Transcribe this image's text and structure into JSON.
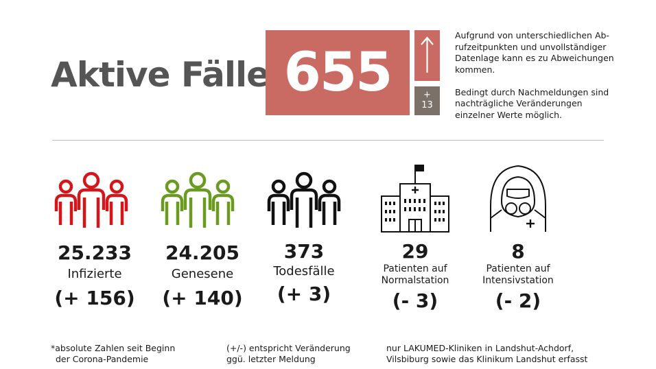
{
  "header": {
    "title": "Aktive Fälle",
    "active_count": "655",
    "change_sign": "+",
    "change_value": "13",
    "notes": [
      "Aufgrund von unterschiedlichen Ab-",
      "rufzeitpunkten und unvollständiger",
      "Datenlage kann es zu Abweichungen",
      "kommen.",
      "",
      "Bedingt durch Nachmeldungen sind",
      "nachträgliche Veränderungen",
      "einzelner Werte möglich."
    ]
  },
  "colors": {
    "accent": "#c96a63",
    "delta_box": "#7b7169",
    "infected": "#d4161b",
    "recovered": "#6a9a1f",
    "deaths": "#111111"
  },
  "stats": {
    "infected": {
      "icon": "people-icon",
      "value": "25.233",
      "label": "Infizierte",
      "change": "(+ 156)"
    },
    "recovered": {
      "icon": "people-icon",
      "value": "24.205",
      "label": "Genesene",
      "change": "(+ 140)"
    },
    "deaths": {
      "icon": "people-icon",
      "value": "373",
      "label": "Todesfälle",
      "change": "(+ 3)"
    },
    "normal": {
      "icon": "hospital-icon",
      "value": "29",
      "label_1": "Patienten auf",
      "label_2": "Normalstation",
      "change": "(- 3)"
    },
    "intensive": {
      "icon": "medic-hazmat-icon",
      "value": "8",
      "label_1": "Patienten auf",
      "label_2": "Intensivstation",
      "change": "(- 2)"
    }
  },
  "footer": {
    "col1_line1": "*absolute Zahlen seit Beginn",
    "col1_line2": "der Corona-Pandemie",
    "col2_line1": "(+/-) entspricht Veränderung",
    "col2_line2": "ggü. letzter Meldung",
    "col3_line1": "nur LAKUMED-Kliniken in Landshut-Achdorf,",
    "col3_line2": "Vilsbiburg sowie das Klinikum Landshut erfasst"
  }
}
